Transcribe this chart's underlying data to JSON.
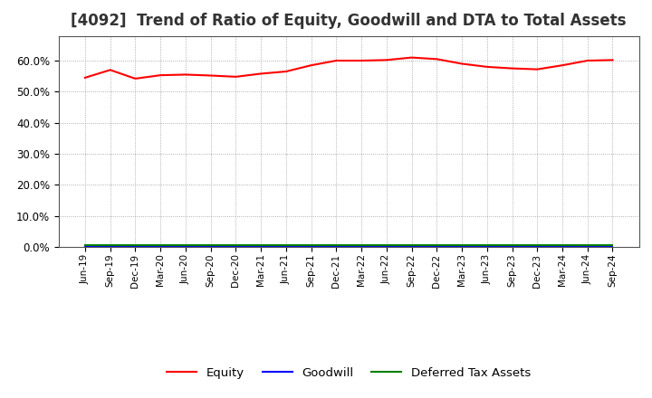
{
  "title": "[4092]  Trend of Ratio of Equity, Goodwill and DTA to Total Assets",
  "x_labels": [
    "Jun-19",
    "Sep-19",
    "Dec-19",
    "Mar-20",
    "Jun-20",
    "Sep-20",
    "Dec-20",
    "Mar-21",
    "Jun-21",
    "Sep-21",
    "Dec-21",
    "Mar-22",
    "Jun-22",
    "Sep-22",
    "Dec-22",
    "Mar-23",
    "Jun-23",
    "Sep-23",
    "Dec-23",
    "Mar-24",
    "Jun-24",
    "Sep-24"
  ],
  "equity": [
    54.5,
    57.0,
    54.2,
    55.3,
    55.5,
    55.2,
    54.8,
    55.8,
    56.5,
    58.5,
    60.0,
    60.0,
    60.2,
    61.0,
    60.5,
    59.0,
    58.0,
    57.5,
    57.2,
    58.5,
    60.0,
    60.2
  ],
  "goodwill": [
    0.0,
    0.0,
    0.0,
    0.0,
    0.0,
    0.0,
    0.0,
    0.0,
    0.0,
    0.0,
    0.0,
    0.0,
    0.0,
    0.0,
    0.0,
    0.0,
    0.0,
    0.0,
    0.0,
    0.0,
    0.0,
    0.0
  ],
  "dta": [
    0.5,
    0.5,
    0.5,
    0.5,
    0.5,
    0.5,
    0.5,
    0.5,
    0.5,
    0.5,
    0.5,
    0.5,
    0.5,
    0.5,
    0.5,
    0.5,
    0.5,
    0.5,
    0.5,
    0.5,
    0.5,
    0.5
  ],
  "equity_color": "#ff0000",
  "goodwill_color": "#0000ff",
  "dta_color": "#008000",
  "ylim": [
    0,
    68
  ],
  "yticks": [
    0,
    10,
    20,
    30,
    40,
    50,
    60
  ],
  "bg_color": "#ffffff",
  "grid_color": "#999999",
  "title_fontsize": 12,
  "legend_labels": [
    "Equity",
    "Goodwill",
    "Deferred Tax Assets"
  ]
}
